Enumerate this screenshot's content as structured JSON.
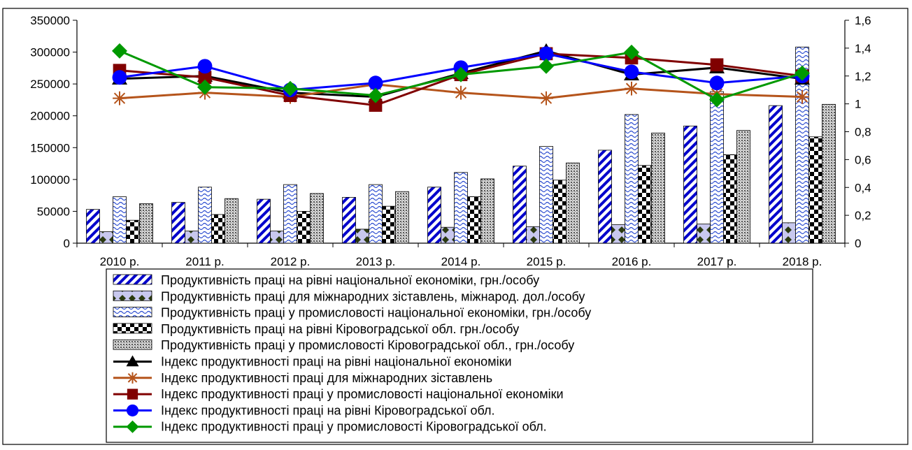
{
  "chart_data": {
    "type": "bar",
    "categories": [
      "2010 р.",
      "2011 р.",
      "2012 р.",
      "2013 р.",
      "2014 р.",
      "2015 р.",
      "2016 р.",
      "2017 р.",
      "2018 р."
    ],
    "y_left": {
      "ylim": [
        0,
        350000
      ],
      "ticks": [
        0,
        50000,
        100000,
        150000,
        200000,
        250000,
        300000,
        350000
      ],
      "tick_labels": [
        "0",
        "50000",
        "100000",
        "150000",
        "200000",
        "250000",
        "300000",
        "350000"
      ]
    },
    "y_right": {
      "ylim": [
        0,
        1.6
      ],
      "ticks": [
        0,
        0.2,
        0.4,
        0.6,
        0.8,
        1.0,
        1.2,
        1.4,
        1.6
      ],
      "tick_labels": [
        "0",
        "0,2",
        "0,4",
        "0,6",
        "0,8",
        "1",
        "1,2",
        "1,4",
        "1,6"
      ]
    },
    "grid": false,
    "legend_position": "bottom",
    "bar_series": [
      {
        "name": "Продуктивність праці на рівні національної економіки, грн./особу",
        "pattern": "diag",
        "values": [
          53000,
          64000,
          69000,
          72000,
          88000,
          121000,
          146000,
          184000,
          216000
        ]
      },
      {
        "name": "Продуктивність праці для міжнародних зіставлень, міжнарод. дол./особу",
        "pattern": "diamond",
        "values": [
          18000,
          19000,
          19000,
          22000,
          25000,
          26000,
          29000,
          30000,
          32000
        ]
      },
      {
        "name": "Продуктивність праці у промисловості національної економіки, грн./особу",
        "pattern": "wave",
        "values": [
          73000,
          88000,
          92000,
          92000,
          111000,
          152000,
          202000,
          238000,
          308000
        ]
      },
      {
        "name": "Продуктивність праці на  рівні Кіровоградської обл. грн./особу",
        "pattern": "checker",
        "values": [
          36000,
          45000,
          50000,
          58000,
          73000,
          99000,
          122000,
          139000,
          167000
        ]
      },
      {
        "name": "Продуктивність праці у промисловості Кіровоградської обл., грн./особу",
        "pattern": "dots",
        "values": [
          62000,
          70000,
          78000,
          81000,
          101000,
          126000,
          173000,
          177000,
          218000
        ]
      }
    ],
    "line_series": [
      {
        "name": "Індекс продуктивності праці на рівні національної економіки",
        "color": "#000000",
        "marker": "triangle",
        "values": [
          1.18,
          1.2,
          1.08,
          1.05,
          1.22,
          1.38,
          1.21,
          1.26,
          1.18
        ]
      },
      {
        "name": "Індекс продуктивності праці для міжнародних зіставлень",
        "color": "#b5541b",
        "marker": "star",
        "values": [
          1.04,
          1.08,
          1.05,
          1.14,
          1.08,
          1.04,
          1.11,
          1.07,
          1.05
        ]
      },
      {
        "name": "Індекс продуктивності праці у промисловості національної економіки",
        "color": "#800000",
        "marker": "square",
        "values": [
          1.24,
          1.19,
          1.06,
          0.99,
          1.21,
          1.36,
          1.33,
          1.28,
          1.2
        ]
      },
      {
        "name": "Індекс продуктивності праці на  рівні  Кіровоградської обл.",
        "color": "#0000ff",
        "marker": "circle",
        "values": [
          1.19,
          1.27,
          1.1,
          1.15,
          1.26,
          1.36,
          1.23,
          1.15,
          1.2
        ]
      },
      {
        "name": "Індекс продуктивності праці у промисловості Кіровоградської обл.",
        "color": "#009900",
        "marker": "diamond",
        "values": [
          1.38,
          1.12,
          1.11,
          1.06,
          1.21,
          1.27,
          1.37,
          1.03,
          1.22
        ]
      }
    ]
  }
}
